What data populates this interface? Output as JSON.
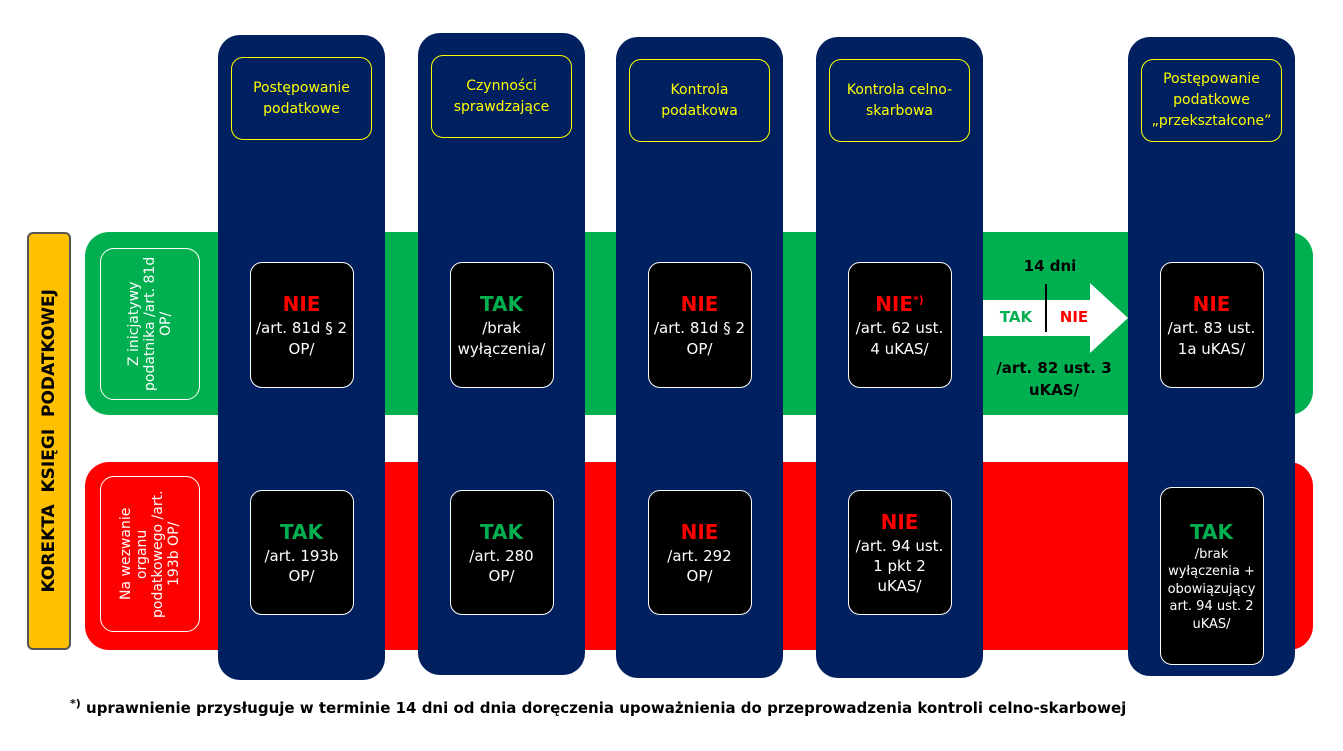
{
  "side_label": "KOREKTA  KSIĘGI  PODATKOWEJ",
  "rows": [
    {
      "label": "Z inicjatywy podatnika /art. 81d OP/"
    },
    {
      "label": "Na wezwanie organu podatkowego /art. 193b OP/"
    }
  ],
  "columns": [
    {
      "header": "Postępowanie podatkowe",
      "cells": [
        {
          "verdict": "NIE",
          "detail": "/art. 81d § 2 OP/"
        },
        {
          "verdict": "TAK",
          "detail": "/art. 193b OP/"
        }
      ]
    },
    {
      "header": "Czynności sprawdzające",
      "cells": [
        {
          "verdict": "TAK",
          "detail": "/brak wyłączenia/"
        },
        {
          "verdict": "TAK",
          "detail": "/art. 280 OP/"
        }
      ]
    },
    {
      "header": "Kontrola podatkowa",
      "cells": [
        {
          "verdict": "NIE",
          "detail": "/art. 81d § 2 OP/"
        },
        {
          "verdict": "NIE",
          "detail": "/art. 292 OP/"
        }
      ]
    },
    {
      "header": "Kontrola celno-skarbowa",
      "cells": [
        {
          "verdict": "NIE",
          "note": "*)",
          "detail": "/art. 62 ust. 4 uKAS/"
        },
        {
          "verdict": "NIE",
          "detail": "/art. 94 ust. 1 pkt 2 uKAS/"
        }
      ]
    },
    {
      "header": "Postępowanie podatkowe „przekształcone”",
      "cells": [
        {
          "verdict": "NIE",
          "detail": "/art. 83 ust. 1a uKAS/"
        },
        {
          "verdict": "TAK",
          "detail": "/brak wyłączenia + obowiązujący art. 94 ust. 2 uKAS/"
        }
      ]
    }
  ],
  "arrow": {
    "days": "14 dni",
    "left": "TAK",
    "right": "NIE",
    "reference": "/art. 82 ust. 3 uKAS/"
  },
  "footnote": {
    "mark": "*)",
    "text": "uprawnienie przysługuje w terminie 14 dni od dnia doręczenia upoważnienia do przeprowadzenia kontroli celno-skarbowej"
  }
}
